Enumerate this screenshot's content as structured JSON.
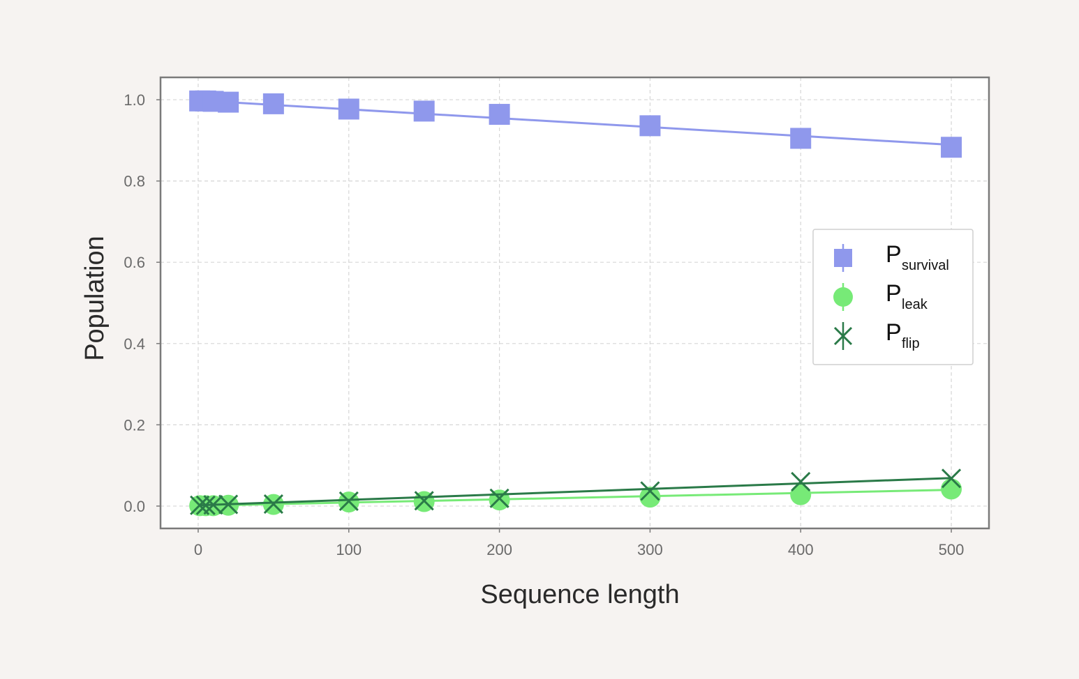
{
  "chart_data": {
    "type": "line",
    "xlabel": "Sequence length",
    "ylabel": "Population",
    "xlim": [
      -25,
      525
    ],
    "ylim": [
      -0.055,
      1.055
    ],
    "xticks": [
      0,
      100,
      200,
      300,
      400,
      500
    ],
    "xtick_labels": [
      "0",
      "100",
      "200",
      "300",
      "400",
      "500"
    ],
    "yticks": [
      0.0,
      0.2,
      0.4,
      0.6,
      0.8,
      1.0
    ],
    "ytick_labels": [
      "0.0",
      "0.2",
      "0.4",
      "0.6",
      "0.8",
      "1.0"
    ],
    "grid": true,
    "legend_position": "right",
    "series": [
      {
        "name": "P",
        "name_sub": "survival",
        "marker": "square",
        "color": "#8f98ec",
        "x": [
          1,
          5,
          10,
          20,
          50,
          100,
          150,
          200,
          300,
          400,
          500
        ],
        "y": [
          0.997,
          0.997,
          0.996,
          0.994,
          0.99,
          0.977,
          0.972,
          0.964,
          0.936,
          0.905,
          0.883
        ],
        "fit": [
          0.998,
          0.889
        ]
      },
      {
        "name": "P",
        "name_sub": "leak",
        "marker": "circle",
        "color": "#77ea77",
        "x": [
          1,
          5,
          10,
          20,
          50,
          100,
          150,
          200,
          300,
          400,
          500
        ],
        "y": [
          0.001,
          0.001,
          0.001,
          0.002,
          0.004,
          0.01,
          0.011,
          0.015,
          0.022,
          0.028,
          0.042
        ],
        "fit": [
          0.001,
          0.04
        ]
      },
      {
        "name": "P",
        "name_sub": "flip",
        "marker": "x",
        "color": "#2a7a48",
        "x": [
          1,
          5,
          10,
          20,
          50,
          100,
          150,
          200,
          300,
          400,
          500
        ],
        "y": [
          0.002,
          0.002,
          0.003,
          0.004,
          0.005,
          0.012,
          0.013,
          0.019,
          0.037,
          0.06,
          0.068
        ],
        "fit": [
          0.002,
          0.069
        ]
      }
    ]
  }
}
